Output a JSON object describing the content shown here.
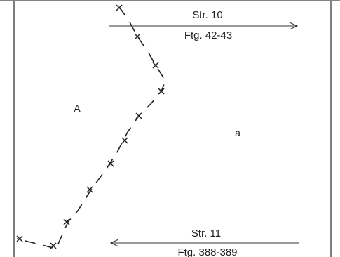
{
  "map": {
    "streets": [
      {
        "name": "Str. 10",
        "parcels": "Ftg. 42-43",
        "direction": "east"
      },
      {
        "name": "Str. 11",
        "parcels": "Ftg. 388-389",
        "direction": "west"
      }
    ],
    "areas": [
      {
        "label": "A"
      },
      {
        "label": "a"
      }
    ],
    "boundary": {
      "line_style": "dashed",
      "vertex_marker": "cross",
      "color": "#222222"
    }
  }
}
